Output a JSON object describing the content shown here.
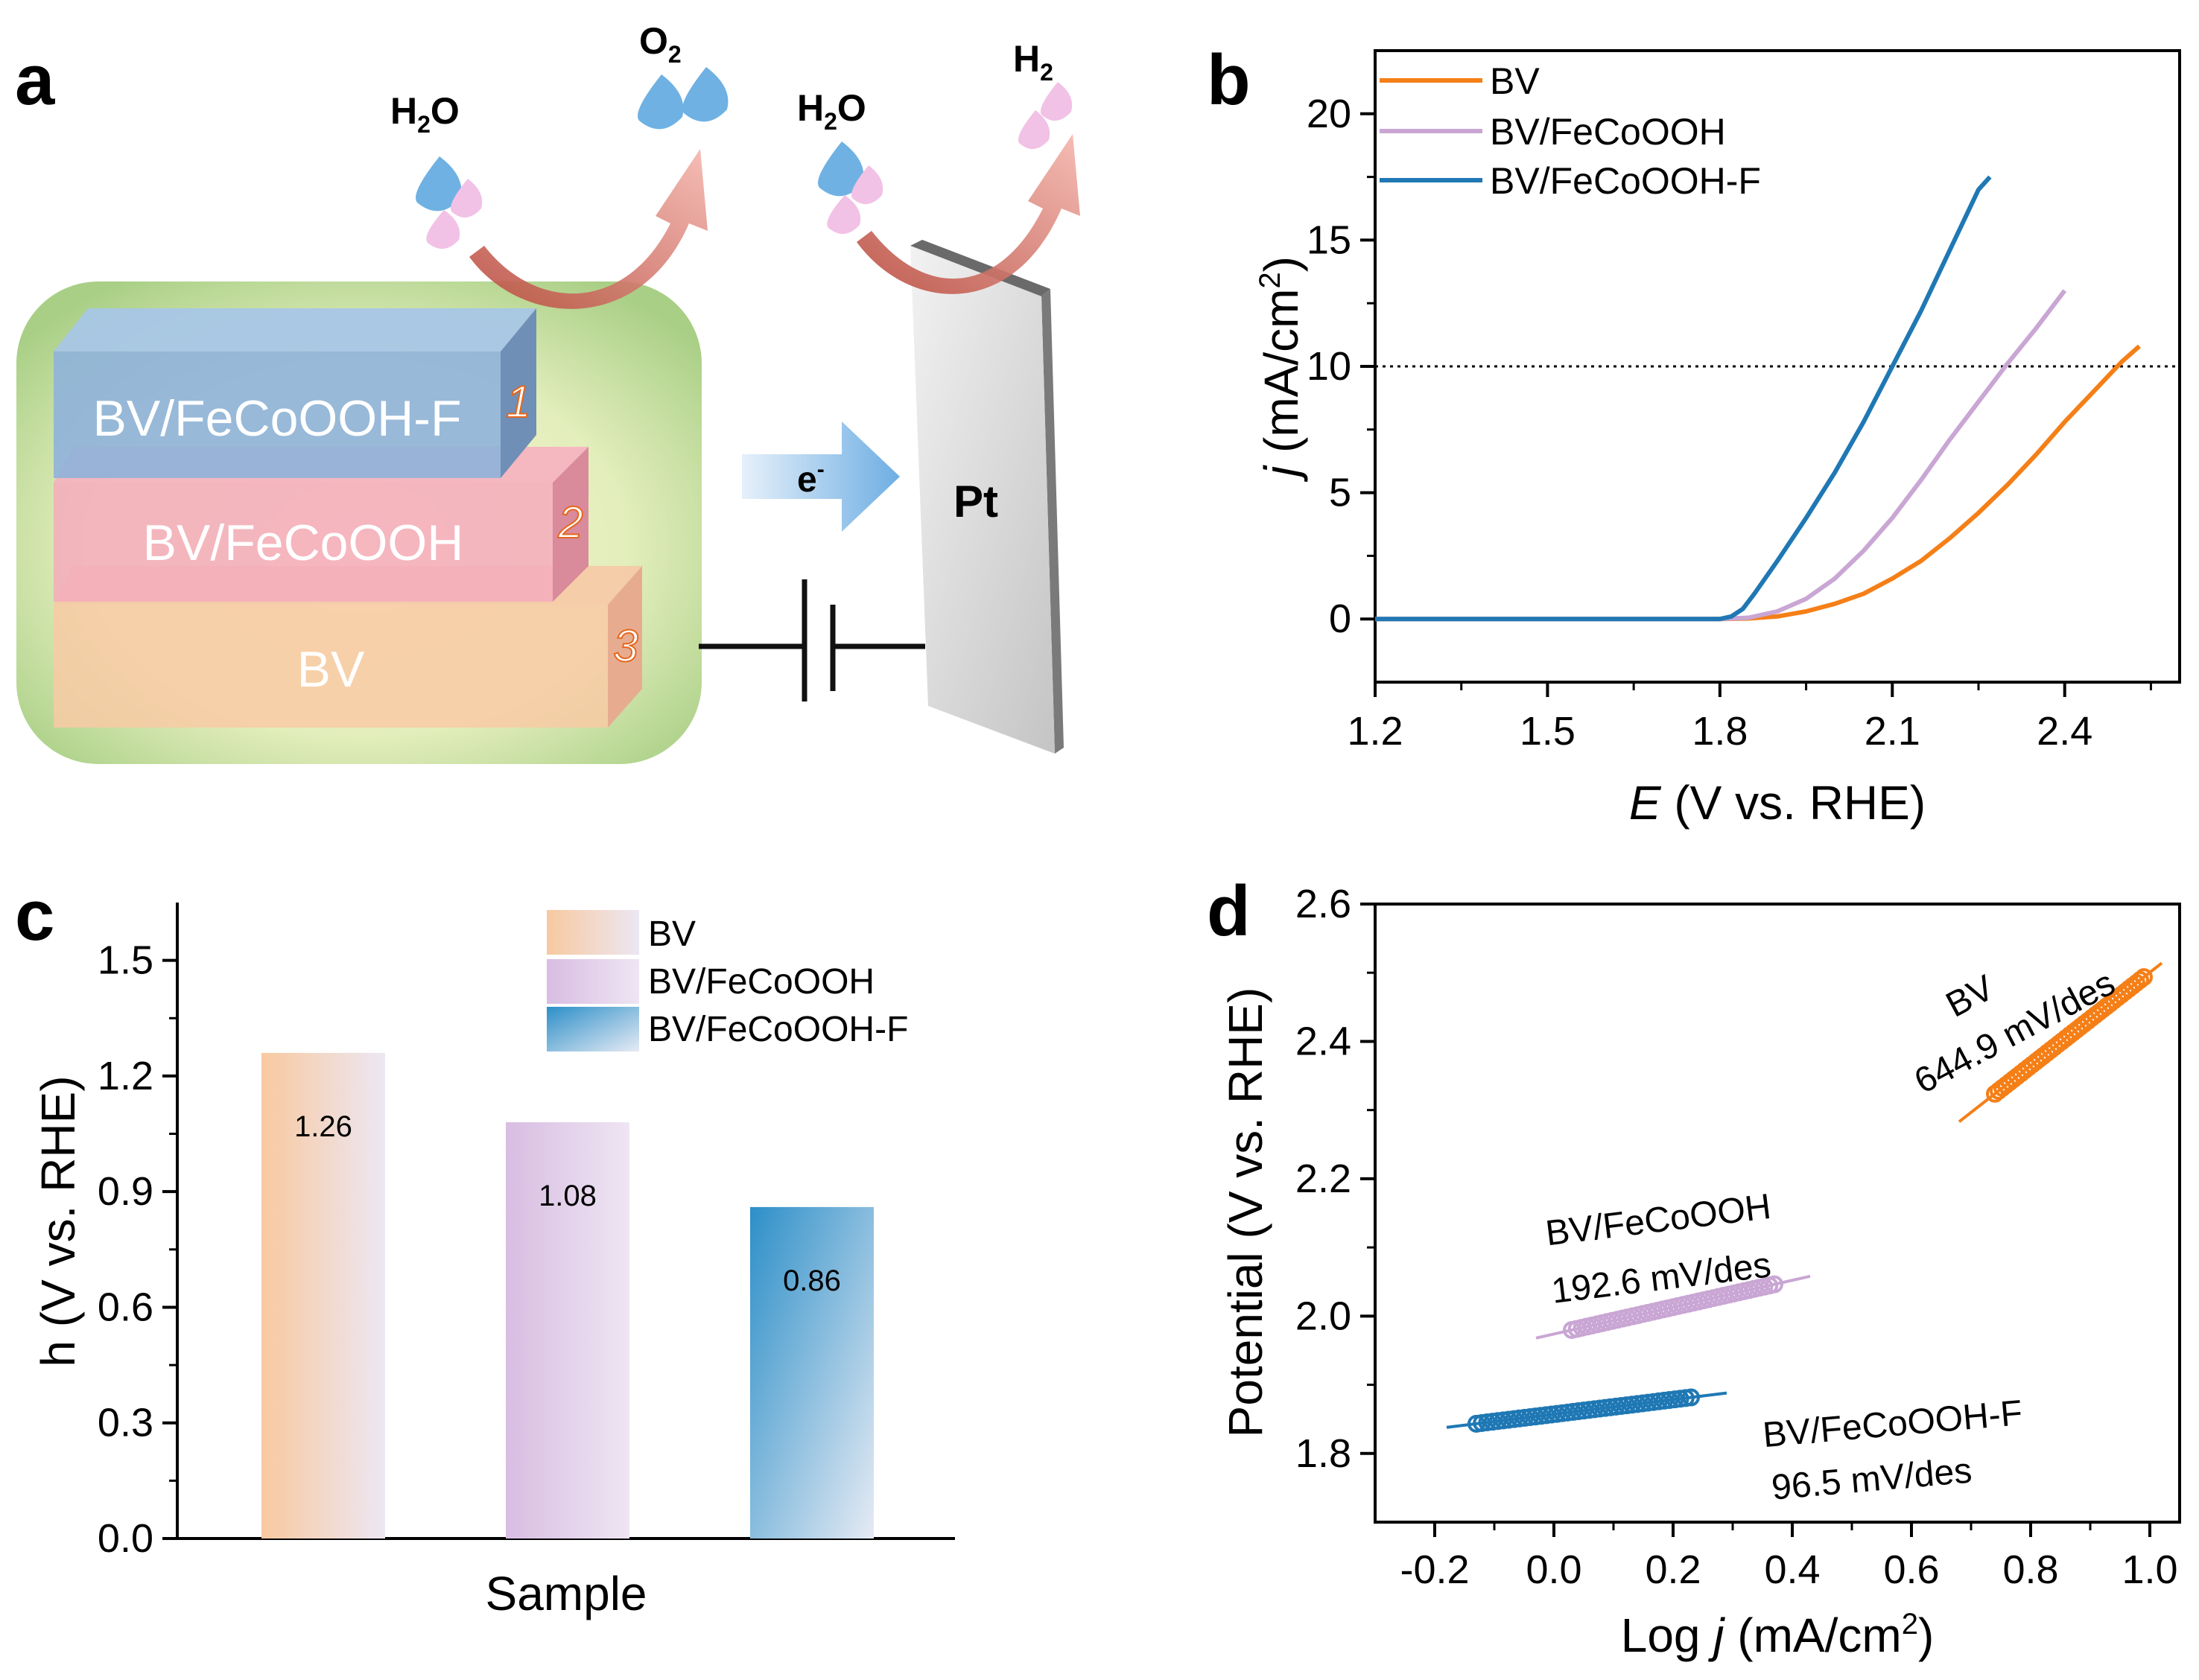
{
  "panel_labels": {
    "a": "a",
    "b": "b",
    "c": "c",
    "d": "d"
  },
  "schematic": {
    "layers": [
      {
        "text": "BV/FeCoOOH-F",
        "number": "1"
      },
      {
        "text": "BV/FeCoOOH",
        "number": "2"
      },
      {
        "text": "BV",
        "number": "3"
      }
    ],
    "anode_water": {
      "main": "H",
      "sub": "2",
      "tail": "O"
    },
    "anode_product": {
      "main": "O",
      "sub": "2"
    },
    "cathode_water": {
      "main": "H",
      "sub": "2",
      "tail": "O"
    },
    "cathode_product": {
      "main": "H",
      "sub": "2"
    },
    "electron": {
      "main": "e",
      "sup": "-"
    },
    "electrode": "Pt",
    "colors": {
      "layer1": "#8fb0d8",
      "layer2": "#f3a9b8",
      "layer3": "#f8c9a0",
      "panel_bg": "#d6e8b4",
      "arrow": "#e8807a",
      "water_blue": "#6fb1e3",
      "water_pink": "#f2b8e0"
    }
  },
  "chart_data": [
    {
      "panel": "b",
      "type": "line",
      "xlabel": {
        "italic": "E",
        "rest": " (V vs. RHE)"
      },
      "ylabel": {
        "italic": "j",
        "rest": " (mA/cm",
        "sup": "2",
        "close": ")"
      },
      "xlim": [
        1.2,
        2.6
      ],
      "ylim": [
        -2.5,
        22.5
      ],
      "xticks": [
        "1.2",
        "1.5",
        "1.8",
        "2.1",
        "2.4"
      ],
      "yticks": [
        "0",
        "5",
        "10",
        "15",
        "20"
      ],
      "reference_line": {
        "y": 10,
        "style": "dotted"
      },
      "legend_position": "top-left",
      "series": [
        {
          "name": "BV",
          "color": "#f57f17",
          "points": [
            [
              1.2,
              0
            ],
            [
              1.8,
              0
            ],
            [
              1.85,
              0.02
            ],
            [
              1.9,
              0.1
            ],
            [
              1.95,
              0.3
            ],
            [
              2.0,
              0.6
            ],
            [
              2.05,
              1.0
            ],
            [
              2.1,
              1.6
            ],
            [
              2.15,
              2.3
            ],
            [
              2.2,
              3.2
            ],
            [
              2.25,
              4.2
            ],
            [
              2.3,
              5.3
            ],
            [
              2.35,
              6.5
            ],
            [
              2.4,
              7.8
            ],
            [
              2.45,
              9.0
            ],
            [
              2.5,
              10.2
            ],
            [
              2.53,
              10.8
            ]
          ]
        },
        {
          "name": "BV/FeCoOOH",
          "color": "#c9a6d4",
          "points": [
            [
              1.2,
              0
            ],
            [
              1.8,
              0
            ],
            [
              1.85,
              0.05
            ],
            [
              1.9,
              0.3
            ],
            [
              1.95,
              0.8
            ],
            [
              2.0,
              1.6
            ],
            [
              2.05,
              2.7
            ],
            [
              2.1,
              4.0
            ],
            [
              2.15,
              5.5
            ],
            [
              2.2,
              7.1
            ],
            [
              2.25,
              8.6
            ],
            [
              2.3,
              10.1
            ],
            [
              2.35,
              11.5
            ],
            [
              2.4,
              13.0
            ]
          ]
        },
        {
          "name": "BV/FeCoOOH-F",
          "color": "#1f78b4",
          "points": [
            [
              1.2,
              0
            ],
            [
              1.8,
              0
            ],
            [
              1.82,
              0.1
            ],
            [
              1.84,
              0.4
            ],
            [
              1.86,
              1.0
            ],
            [
              1.9,
              2.3
            ],
            [
              1.95,
              4.0
            ],
            [
              2.0,
              5.8
            ],
            [
              2.05,
              7.8
            ],
            [
              2.1,
              10.0
            ],
            [
              2.15,
              12.2
            ],
            [
              2.2,
              14.6
            ],
            [
              2.25,
              17.0
            ],
            [
              2.27,
              17.5
            ]
          ]
        }
      ]
    },
    {
      "panel": "c",
      "type": "bar",
      "xlabel": "Sample",
      "ylabel": "h (V vs. RHE)",
      "ylim": [
        0,
        1.65
      ],
      "yticks": [
        "0.0",
        "0.3",
        "0.6",
        "0.9",
        "1.2",
        "1.5"
      ],
      "categories": [
        "BV",
        "BV/FeCoOOH",
        "BV/FeCoOOH-F"
      ],
      "values": [
        1.26,
        1.08,
        0.86
      ],
      "labels": [
        "1.26",
        "1.08",
        "0.86"
      ],
      "colors": [
        "#f8c9a0",
        "#dcc6e4",
        "#3a96cc"
      ],
      "legend_position": "top-right"
    },
    {
      "panel": "d",
      "type": "scatter",
      "xlabel": {
        "main": "Log ",
        "italic": "j",
        "rest": " (mA/cm",
        "sup": "2",
        "close": ")"
      },
      "ylabel": "Potential (V vs. RHE)",
      "xlim": [
        -0.3,
        1.05
      ],
      "ylim": [
        1.7,
        2.6
      ],
      "xticks": [
        "-0.2",
        "0.0",
        "0.2",
        "0.4",
        "0.6",
        "0.8",
        "1.0"
      ],
      "yticks": [
        "1.8",
        "2.0",
        "2.2",
        "2.4",
        "2.6"
      ],
      "series": [
        {
          "name": "BV",
          "color": "#f57f17",
          "slope_label": "644.9 mV/des",
          "data_x": [
            0.74,
            0.99
          ],
          "fit": [
            [
              0.68,
              2.283
            ],
            [
              1.02,
              2.514
            ]
          ]
        },
        {
          "name": "BV/FeCoOOH",
          "color": "#c9a6d4",
          "slope_label": "192.6 mV/des",
          "data_x": [
            0.03,
            0.37
          ],
          "fit": [
            [
              -0.03,
              1.968
            ],
            [
              0.43,
              2.058
            ]
          ]
        },
        {
          "name": "BV/FeCoOOH-F",
          "color": "#1f78b4",
          "slope_label": "96.5 mV/des",
          "data_x": [
            -0.13,
            0.23
          ],
          "fit": [
            [
              -0.18,
              1.838
            ],
            [
              0.29,
              1.888
            ]
          ]
        }
      ]
    }
  ]
}
